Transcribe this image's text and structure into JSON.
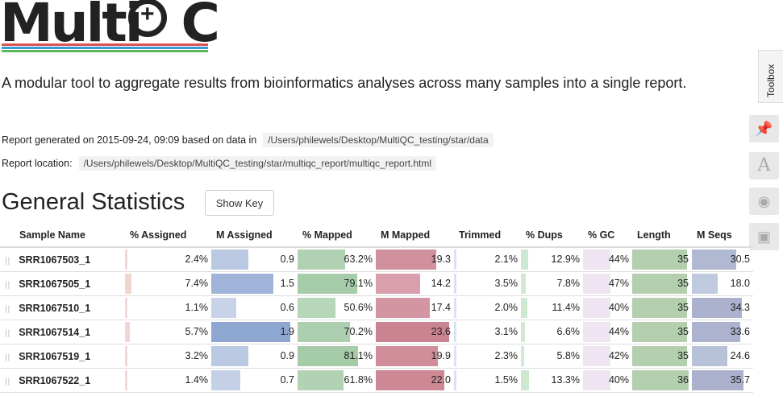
{
  "logo": {
    "text": "MultiQC",
    "text_pre": "Multi",
    "text_post": "C"
  },
  "tagline": "A modular tool to aggregate results from bioinformatics analyses across many samples into a single report.",
  "report_generated_label": "Report generated on 2015-09-24, 09:09 based on data in",
  "report_generated_path": "/Users/philewels/Desktop/MultiQC_testing/star/data",
  "report_location_label": "Report location:",
  "report_location_path": "/Users/philewels/Desktop/MultiQC_testing/star/multiqc_report/multiqc_report.html",
  "section_title": "General Statistics",
  "show_key_label": "Show Key",
  "toolbox_label": "Toolbox",
  "toolbox_icons": [
    "pin-icon",
    "font-icon",
    "eye-slash-icon",
    "save-icon"
  ],
  "columns": [
    "Sample Name",
    "% Assigned",
    "M Assigned",
    "% Mapped",
    "M Mapped",
    "Trimmed",
    "% Dups",
    "% GC",
    "Length",
    "M Seqs"
  ],
  "rows": [
    {
      "sample": "SRR1067503_1",
      "pct_assigned": "2.4%",
      "m_assigned": "0.9",
      "pct_mapped": "63.2%",
      "m_mapped": "19.3",
      "trimmed": "2.1%",
      "pct_dups": "12.9%",
      "pct_gc": "44%",
      "length": "35",
      "m_seqs": "30.5"
    },
    {
      "sample": "SRR1067505_1",
      "pct_assigned": "7.4%",
      "m_assigned": "1.5",
      "pct_mapped": "79.1%",
      "m_mapped": "14.2",
      "trimmed": "3.5%",
      "pct_dups": "7.8%",
      "pct_gc": "47%",
      "length": "35",
      "m_seqs": "18.0"
    },
    {
      "sample": "SRR1067510_1",
      "pct_assigned": "1.1%",
      "m_assigned": "0.6",
      "pct_mapped": "50.6%",
      "m_mapped": "17.4",
      "trimmed": "2.0%",
      "pct_dups": "11.4%",
      "pct_gc": "40%",
      "length": "35",
      "m_seqs": "34.3"
    },
    {
      "sample": "SRR1067514_1",
      "pct_assigned": "5.7%",
      "m_assigned": "1.9",
      "pct_mapped": "70.2%",
      "m_mapped": "23.6",
      "trimmed": "3.1%",
      "pct_dups": "6.6%",
      "pct_gc": "44%",
      "length": "35",
      "m_seqs": "33.6"
    },
    {
      "sample": "SRR1067519_1",
      "pct_assigned": "3.2%",
      "m_assigned": "0.9",
      "pct_mapped": "81.1%",
      "m_mapped": "19.9",
      "trimmed": "2.3%",
      "pct_dups": "5.8%",
      "pct_gc": "42%",
      "length": "35",
      "m_seqs": "24.6"
    },
    {
      "sample": "SRR1067522_1",
      "pct_assigned": "1.4%",
      "m_assigned": "0.7",
      "pct_mapped": "61.8%",
      "m_mapped": "22.0",
      "trimmed": "1.5%",
      "pct_dups": "13.3%",
      "pct_gc": "40%",
      "length": "36",
      "m_seqs": "35.7"
    }
  ]
}
